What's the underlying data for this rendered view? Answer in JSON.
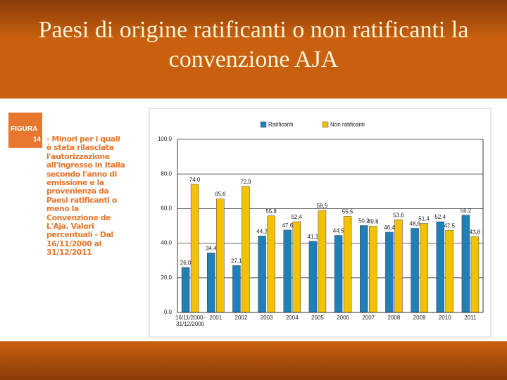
{
  "slide_title": "Paesi di origine ratificanti o non ratificanti la convenzione AJA",
  "figure": {
    "label": "FIGURA",
    "number": "14",
    "caption": "- Minori per i quali è stata rilasciata l'autorizzazione all'ingresso in Italia secondo l'anno di emissione e la provenienza da Paesi ratificanti o meno la Convenzione de L'Aja. Valori percentuali - Dal 16/11/2000 al 31/12/2011"
  },
  "chart_data": {
    "type": "bar",
    "categories": [
      "16/11/2000-31/12/2000",
      "2001",
      "2002",
      "2003",
      "2004",
      "2005",
      "2006",
      "2007",
      "2008",
      "2009",
      "2010",
      "2011"
    ],
    "series": [
      {
        "name": "Ratificanti",
        "color": "#1f7fb8",
        "values": [
          26.0,
          34.4,
          27.1,
          44.2,
          47.6,
          41.1,
          44.5,
          50.2,
          46.4,
          48.6,
          52.4,
          56.2
        ],
        "value_labels": [
          "26,0",
          "34,4",
          "27,1",
          "44,2",
          "47,6",
          "41,1",
          "44,5",
          "50,2",
          "46,4",
          "48,6",
          "52,4",
          "56,2"
        ]
      },
      {
        "name": "Non ratificanti",
        "color": "#f2c200",
        "values": [
          74.0,
          65.6,
          72.9,
          55.8,
          52.4,
          58.9,
          55.5,
          49.8,
          53.6,
          51.4,
          47.5,
          43.8
        ],
        "value_labels": [
          "74,0",
          "65,6",
          "72,9",
          "55,8",
          "52,4",
          "58,9",
          "55,5",
          "49,8",
          "53,6",
          "51,4",
          "47,5",
          "43,8"
        ]
      }
    ],
    "ylim": [
      0,
      100
    ],
    "yticks": [
      {
        "value": 0,
        "label": "0,0"
      },
      {
        "value": 20,
        "label": "20,0"
      },
      {
        "value": 40,
        "label": "40,0"
      },
      {
        "value": 60,
        "label": "60,0"
      },
      {
        "value": 80,
        "label": "80,0"
      },
      {
        "value": 100,
        "label": "100,0"
      }
    ],
    "grid": true
  }
}
